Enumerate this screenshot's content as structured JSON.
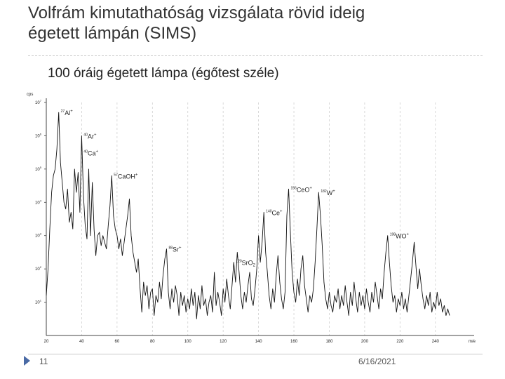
{
  "slide": {
    "title_line1": "Volfrám kimutathatóság vizsgálata rövid ideig",
    "title_line2": "égetett lámpán (SIMS)",
    "subtitle": "100 óráig égetett lámpa (égőtest széle)",
    "page_number": "11",
    "date": "6/16/2021"
  },
  "chart_data": {
    "type": "line",
    "title": "",
    "ylabel": "cps",
    "xlabel": "m/e",
    "y_scale": "log",
    "ylim_exp": [
      0,
      7
    ],
    "y_ticks": [
      {
        "base": "10",
        "exp": "1"
      },
      {
        "base": "10",
        "exp": "2"
      },
      {
        "base": "10",
        "exp": "3"
      },
      {
        "base": "10",
        "exp": "4"
      },
      {
        "base": "10",
        "exp": "5"
      },
      {
        "base": "10",
        "exp": "6"
      },
      {
        "base": "10",
        "exp": "7"
      }
    ],
    "x_ticks": [
      "20",
      "40",
      "60",
      "80",
      "100",
      "120",
      "140",
      "160",
      "180",
      "200",
      "220",
      "240"
    ],
    "grid": "vertical dashed",
    "series": [
      {
        "values": [
          [
            20,
            1.2
          ],
          [
            21,
            2.0
          ],
          [
            22,
            3.2
          ],
          [
            23,
            4.3
          ],
          [
            24,
            4.8
          ],
          [
            25,
            5.0
          ],
          [
            26,
            5.6
          ],
          [
            27,
            6.7
          ],
          [
            28,
            5.2
          ],
          [
            29,
            4.6
          ],
          [
            30,
            4.0
          ],
          [
            31,
            3.8
          ],
          [
            32,
            4.4
          ],
          [
            33,
            3.4
          ],
          [
            34,
            3.7
          ],
          [
            35,
            3.2
          ],
          [
            36,
            5.0
          ],
          [
            37,
            4.3
          ],
          [
            38,
            4.9
          ],
          [
            39,
            3.7
          ],
          [
            40,
            6.0
          ],
          [
            41,
            4.2
          ],
          [
            42,
            3.3
          ],
          [
            43,
            2.9
          ],
          [
            44,
            5.0
          ],
          [
            45,
            3.0
          ],
          [
            46,
            4.6
          ],
          [
            47,
            3.2
          ],
          [
            48,
            2.4
          ],
          [
            49,
            3.0
          ],
          [
            50,
            3.1
          ],
          [
            51,
            2.7
          ],
          [
            52,
            3.0
          ],
          [
            53,
            2.8
          ],
          [
            54,
            2.6
          ],
          [
            55,
            3.3
          ],
          [
            56,
            3.9
          ],
          [
            57,
            4.8
          ],
          [
            58,
            3.6
          ],
          [
            59,
            3.2
          ],
          [
            60,
            3.0
          ],
          [
            61,
            2.6
          ],
          [
            62,
            2.9
          ],
          [
            63,
            2.4
          ],
          [
            64,
            2.8
          ],
          [
            65,
            3.2
          ],
          [
            66,
            3.6
          ],
          [
            67,
            4.1
          ],
          [
            68,
            3.0
          ],
          [
            69,
            2.5
          ],
          [
            70,
            2.2
          ],
          [
            71,
            1.9
          ],
          [
            72,
            2.3
          ],
          [
            73,
            1.4
          ],
          [
            74,
            0.7
          ],
          [
            75,
            1.6
          ],
          [
            76,
            1.2
          ],
          [
            77,
            1.5
          ],
          [
            78,
            0.8
          ],
          [
            79,
            1.3
          ],
          [
            80,
            1.4
          ],
          [
            81,
            0.6
          ],
          [
            82,
            1.2
          ],
          [
            83,
            1.0
          ],
          [
            84,
            1.6
          ],
          [
            85,
            1.1
          ],
          [
            86,
            1.8
          ],
          [
            87,
            2.3
          ],
          [
            88,
            2.6
          ],
          [
            89,
            1.3
          ],
          [
            90,
            0.8
          ],
          [
            91,
            1.4
          ],
          [
            92,
            1.0
          ],
          [
            93,
            1.5
          ],
          [
            94,
            1.2
          ],
          [
            95,
            0.6
          ],
          [
            96,
            1.3
          ],
          [
            97,
            0.9
          ],
          [
            98,
            1.2
          ],
          [
            99,
            0.7
          ],
          [
            100,
            1.1
          ],
          [
            101,
            0.8
          ],
          [
            102,
            1.4
          ],
          [
            103,
            0.9
          ],
          [
            104,
            1.3
          ],
          [
            105,
            0.5
          ],
          [
            106,
            1.2
          ],
          [
            107,
            0.8
          ],
          [
            108,
            1.5
          ],
          [
            109,
            0.9
          ],
          [
            110,
            1.1
          ],
          [
            111,
            0.6
          ],
          [
            112,
            1.0
          ],
          [
            113,
            1.2
          ],
          [
            114,
            0.7
          ],
          [
            115,
            1.9
          ],
          [
            116,
            0.9
          ],
          [
            117,
            1.3
          ],
          [
            118,
            1.0
          ],
          [
            119,
            0.6
          ],
          [
            120,
            1.4
          ],
          [
            121,
            1.0
          ],
          [
            122,
            1.7
          ],
          [
            123,
            1.2
          ],
          [
            124,
            0.8
          ],
          [
            125,
            1.5
          ],
          [
            126,
            2.2
          ],
          [
            127,
            1.6
          ],
          [
            128,
            2.5
          ],
          [
            129,
            1.9
          ],
          [
            130,
            1.2
          ],
          [
            131,
            0.8
          ],
          [
            132,
            1.3
          ],
          [
            133,
            1.0
          ],
          [
            134,
            1.5
          ],
          [
            135,
            1.9
          ],
          [
            136,
            1.1
          ],
          [
            137,
            0.9
          ],
          [
            138,
            1.4
          ],
          [
            139,
            2.0
          ],
          [
            140,
            3.0
          ],
          [
            141,
            2.2
          ],
          [
            142,
            2.8
          ],
          [
            143,
            3.7
          ],
          [
            144,
            2.5
          ],
          [
            145,
            1.9
          ],
          [
            146,
            1.2
          ],
          [
            147,
            0.8
          ],
          [
            148,
            1.4
          ],
          [
            149,
            1.0
          ],
          [
            150,
            1.8
          ],
          [
            151,
            2.4
          ],
          [
            152,
            1.6
          ],
          [
            153,
            1.1
          ],
          [
            154,
            0.8
          ],
          [
            155,
            1.3
          ],
          [
            156,
            3.6
          ],
          [
            157,
            4.4
          ],
          [
            158,
            3.1
          ],
          [
            159,
            1.9
          ],
          [
            160,
            1.3
          ],
          [
            161,
            1.0
          ],
          [
            162,
            1.7
          ],
          [
            163,
            1.2
          ],
          [
            164,
            2.0
          ],
          [
            165,
            2.4
          ],
          [
            166,
            1.5
          ],
          [
            167,
            1.1
          ],
          [
            168,
            0.7
          ],
          [
            169,
            1.2
          ],
          [
            170,
            1.0
          ],
          [
            171,
            1.4
          ],
          [
            172,
            2.2
          ],
          [
            173,
            3.2
          ],
          [
            174,
            4.3
          ],
          [
            175,
            3.6
          ],
          [
            176,
            2.7
          ],
          [
            177,
            1.6
          ],
          [
            178,
            1.1
          ],
          [
            179,
            0.8
          ],
          [
            180,
            1.3
          ],
          [
            181,
            0.9
          ],
          [
            182,
            0.7
          ],
          [
            183,
            1.2
          ],
          [
            184,
            1.0
          ],
          [
            185,
            1.4
          ],
          [
            186,
            0.8
          ],
          [
            187,
            1.2
          ],
          [
            188,
            0.9
          ],
          [
            189,
            1.5
          ],
          [
            190,
            1.0
          ],
          [
            191,
            0.6
          ],
          [
            192,
            1.3
          ],
          [
            193,
            0.9
          ],
          [
            194,
            1.6
          ],
          [
            195,
            1.1
          ],
          [
            196,
            0.7
          ],
          [
            197,
            1.3
          ],
          [
            198,
            0.9
          ],
          [
            199,
            1.2
          ],
          [
            200,
            0.8
          ],
          [
            201,
            1.4
          ],
          [
            202,
            1.0
          ],
          [
            203,
            0.7
          ],
          [
            204,
            1.3
          ],
          [
            205,
            1.0
          ],
          [
            206,
            1.6
          ],
          [
            207,
            1.2
          ],
          [
            208,
            0.8
          ],
          [
            209,
            1.4
          ],
          [
            210,
            1.1
          ],
          [
            211,
            1.9
          ],
          [
            212,
            2.5
          ],
          [
            213,
            3.0
          ],
          [
            214,
            2.2
          ],
          [
            215,
            1.5
          ],
          [
            216,
            1.0
          ],
          [
            217,
            1.2
          ],
          [
            218,
            0.7
          ],
          [
            219,
            1.1
          ],
          [
            220,
            0.9
          ],
          [
            221,
            1.3
          ],
          [
            222,
            0.8
          ],
          [
            223,
            1.1
          ],
          [
            224,
            0.7
          ],
          [
            225,
            1.2
          ],
          [
            226,
            1.7
          ],
          [
            227,
            2.2
          ],
          [
            228,
            2.8
          ],
          [
            229,
            2.1
          ],
          [
            230,
            1.4
          ],
          [
            231,
            2.0
          ],
          [
            232,
            1.5
          ],
          [
            233,
            1.1
          ],
          [
            234,
            0.8
          ],
          [
            235,
            1.2
          ],
          [
            236,
            0.9
          ],
          [
            237,
            1.3
          ],
          [
            238,
            0.7
          ],
          [
            239,
            1.0
          ],
          [
            240,
            0.8
          ],
          [
            241,
            1.3
          ],
          [
            242,
            0.9
          ],
          [
            243,
            1.1
          ],
          [
            244,
            0.7
          ],
          [
            245,
            0.9
          ],
          [
            246,
            0.6
          ],
          [
            247,
            0.8
          ],
          [
            248,
            0.6
          ]
        ]
      }
    ],
    "annotations": [
      {
        "mass": "27",
        "ion": "Al",
        "charge": "+",
        "x": 27,
        "y": 6.7
      },
      {
        "mass": "40",
        "ion": "Ar",
        "charge": "+",
        "x": 40,
        "y": 6.0
      },
      {
        "mass": "40",
        "ion": "Ca",
        "charge": "+",
        "x": 40,
        "y": 5.7
      },
      {
        "mass": "57",
        "ion": "CaOH",
        "charge": "+",
        "x": 57,
        "y": 4.8
      },
      {
        "mass": "88",
        "ion": "Sr",
        "charge": "+",
        "x": 88,
        "y": 2.6
      },
      {
        "mass": "120",
        "ion": "SrO",
        "sub": "2",
        "charge": "",
        "x": 126,
        "y": 2.2
      },
      {
        "mass": "140",
        "ion": "Ce",
        "charge": "+",
        "x": 143,
        "y": 3.7
      },
      {
        "mass": "156",
        "ion": "CeO",
        "charge": "+",
        "x": 157,
        "y": 4.4
      },
      {
        "mass": "182",
        "ion": "W",
        "charge": "+",
        "x": 174,
        "y": 4.3
      },
      {
        "mass": "198",
        "ion": "WO",
        "charge": "+",
        "x": 213,
        "y": 3.0
      }
    ]
  }
}
